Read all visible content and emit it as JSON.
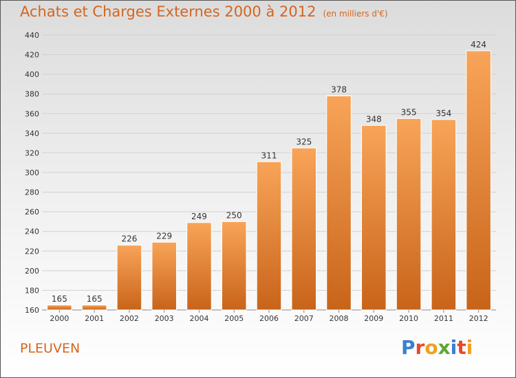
{
  "header": {
    "title": "Achats et Charges Externes 2000 à 2012",
    "subtitle": "(en milliers d'€)"
  },
  "footer": {
    "commune": "PLEUVEN",
    "logo_text": "Proxiti"
  },
  "colors": {
    "accent": "#d4651f",
    "bar_light": "#f8a458",
    "bar_dark": "#c8641a",
    "logo_letters": [
      "#3a7fd0",
      "#e8482a",
      "#f0a020",
      "#5aa832",
      "#3a7fd0",
      "#e8482a",
      "#f0a020"
    ]
  },
  "chart_data": {
    "type": "bar",
    "categories": [
      "2000",
      "2001",
      "2002",
      "2003",
      "2004",
      "2005",
      "2006",
      "2007",
      "2008",
      "2009",
      "2010",
      "2011",
      "2012"
    ],
    "values": [
      165,
      165,
      226,
      229,
      249,
      250,
      311,
      325,
      378,
      348,
      355,
      354,
      424
    ],
    "data_labels": [
      "165",
      "165",
      "226",
      "229",
      "249",
      "250",
      "311",
      "325",
      "378",
      "348",
      "355",
      "354",
      "424"
    ],
    "yticks": [
      "160",
      "180",
      "200",
      "220",
      "240",
      "260",
      "280",
      "300",
      "320",
      "340",
      "360",
      "380",
      "400",
      "420",
      "440"
    ],
    "ylim": [
      160,
      440
    ],
    "grid": true,
    "xlabel": "",
    "ylabel": ""
  }
}
